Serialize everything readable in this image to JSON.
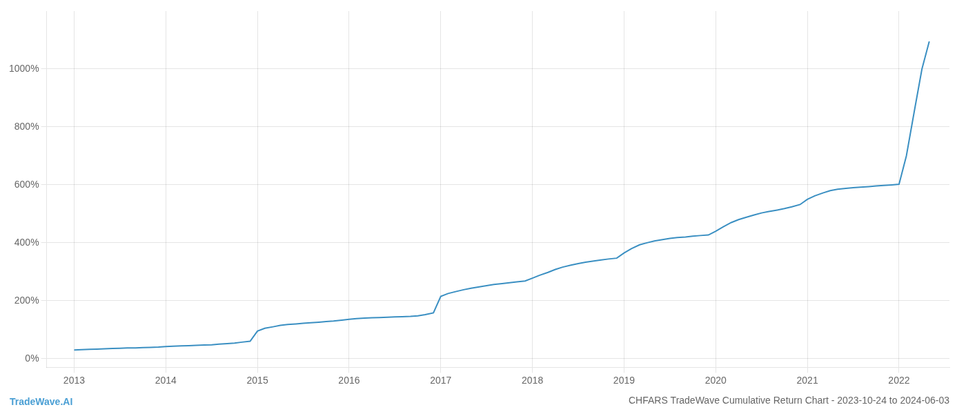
{
  "chart_data": {
    "type": "line",
    "title": "CHFARS TradeWave Cumulative Return Chart - 2023-10-24 to 2024-06-03",
    "annotations": [
      {
        "text": "TradeWave.AI",
        "color": "#4a9fd4"
      }
    ],
    "x": [
      2013.0,
      2013.08,
      2013.17,
      2013.25,
      2013.33,
      2013.42,
      2013.5,
      2013.58,
      2013.67,
      2013.75,
      2013.83,
      2013.92,
      2014.0,
      2014.08,
      2014.17,
      2014.25,
      2014.33,
      2014.42,
      2014.5,
      2014.58,
      2014.67,
      2014.75,
      2014.83,
      2014.92,
      2015.0,
      2015.08,
      2015.17,
      2015.25,
      2015.33,
      2015.42,
      2015.5,
      2015.58,
      2015.67,
      2015.75,
      2015.83,
      2015.92,
      2016.0,
      2016.08,
      2016.17,
      2016.25,
      2016.33,
      2016.42,
      2016.5,
      2016.58,
      2016.67,
      2016.75,
      2016.83,
      2016.92,
      2017.0,
      2017.08,
      2017.17,
      2017.25,
      2017.33,
      2017.42,
      2017.5,
      2017.58,
      2017.67,
      2017.75,
      2017.83,
      2017.92,
      2018.0,
      2018.08,
      2018.17,
      2018.25,
      2018.33,
      2018.42,
      2018.5,
      2018.58,
      2018.67,
      2018.75,
      2018.83,
      2018.92,
      2019.0,
      2019.08,
      2019.17,
      2019.25,
      2019.33,
      2019.42,
      2019.5,
      2019.58,
      2019.67,
      2019.75,
      2019.83,
      2019.92,
      2020.0,
      2020.08,
      2020.17,
      2020.25,
      2020.33,
      2020.42,
      2020.5,
      2020.58,
      2020.67,
      2020.75,
      2020.83,
      2020.92,
      2021.0,
      2021.08,
      2021.17,
      2021.25,
      2021.33,
      2021.42,
      2021.5,
      2021.58,
      2021.67,
      2021.75,
      2021.83,
      2021.92,
      2022.0,
      2022.08,
      2022.17,
      2022.25,
      2022.33
    ],
    "values": [
      30,
      31,
      32,
      33,
      34,
      35,
      36,
      37,
      37,
      38,
      39,
      40,
      42,
      43,
      44,
      45,
      46,
      47,
      48,
      50,
      52,
      54,
      57,
      60,
      95,
      105,
      110,
      115,
      118,
      120,
      122,
      124,
      126,
      128,
      130,
      133,
      136,
      138,
      140,
      141,
      142,
      143,
      144,
      145,
      146,
      148,
      152,
      158,
      215,
      225,
      232,
      238,
      243,
      248,
      252,
      256,
      259,
      262,
      265,
      268,
      278,
      288,
      298,
      308,
      316,
      323,
      328,
      333,
      337,
      341,
      344,
      347,
      365,
      380,
      393,
      400,
      406,
      411,
      415,
      418,
      420,
      423,
      425,
      427,
      440,
      455,
      470,
      480,
      488,
      496,
      503,
      508,
      513,
      518,
      524,
      532,
      550,
      562,
      572,
      580,
      585,
      588,
      590,
      592,
      594,
      596,
      598,
      600,
      602,
      700,
      860,
      1000,
      1095
    ],
    "color": "#3a8fc2",
    "xlim": [
      2012.7,
      2022.55
    ],
    "xticks": [
      2013,
      2014,
      2015,
      2016,
      2017,
      2018,
      2019,
      2020,
      2021,
      2022
    ],
    "ylim": [
      -30,
      1200
    ],
    "yticks": [
      {
        "value": 0,
        "label": "0%"
      },
      {
        "value": 200,
        "label": "200%"
      },
      {
        "value": 400,
        "label": "400%"
      },
      {
        "value": 600,
        "label": "600%"
      },
      {
        "value": 800,
        "label": "800%"
      },
      {
        "value": 1000,
        "label": "1000%"
      }
    ],
    "grid": true
  }
}
